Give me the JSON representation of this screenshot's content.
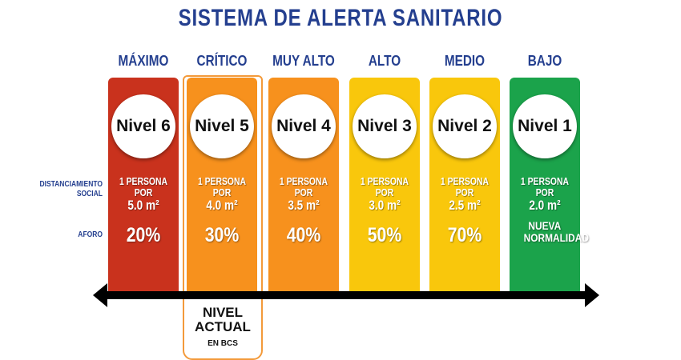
{
  "title": "SISTEMA DE ALERTA SANITARIO",
  "row_labels": {
    "distancing": "DISTANCIAMIENTO SOCIAL",
    "capacity": "AFORO"
  },
  "levels": [
    {
      "category": "MÁXIMO",
      "level": "Nivel 6",
      "distancing": "1 PERSONA POR",
      "area": "5.0 m²",
      "capacity": "20%",
      "color": "#c9321d"
    },
    {
      "category": "CRÍTICO",
      "level": "Nivel 5",
      "distancing": "1 PERSONA POR",
      "area": "4.0 m²",
      "capacity": "30%",
      "color": "#f7911d"
    },
    {
      "category": "MUY ALTO",
      "level": "Nivel 4",
      "distancing": "1 PERSONA POR",
      "area": "3.5 m²",
      "capacity": "40%",
      "color": "#f7911d"
    },
    {
      "category": "ALTO",
      "level": "Nivel 3",
      "distancing": "1 PERSONA POR",
      "area": "3.0 m²",
      "capacity": "50%",
      "color": "#f9c70c"
    },
    {
      "category": "MEDIO",
      "level": "Nivel 2",
      "distancing": "1 PERSONA POR",
      "area": "2.5 m²",
      "capacity": "70%",
      "color": "#f9c70c"
    },
    {
      "category": "BAJO",
      "level": "Nivel 1",
      "distancing": "1 PERSONA POR",
      "area": "2.0 m²",
      "capacity": "NUEVA NORMALIDAD",
      "color": "#1ba34b"
    }
  ],
  "current": {
    "line1": "NIVEL",
    "line2": "ACTUAL",
    "line3": "EN BCS",
    "level_index": 1
  }
}
